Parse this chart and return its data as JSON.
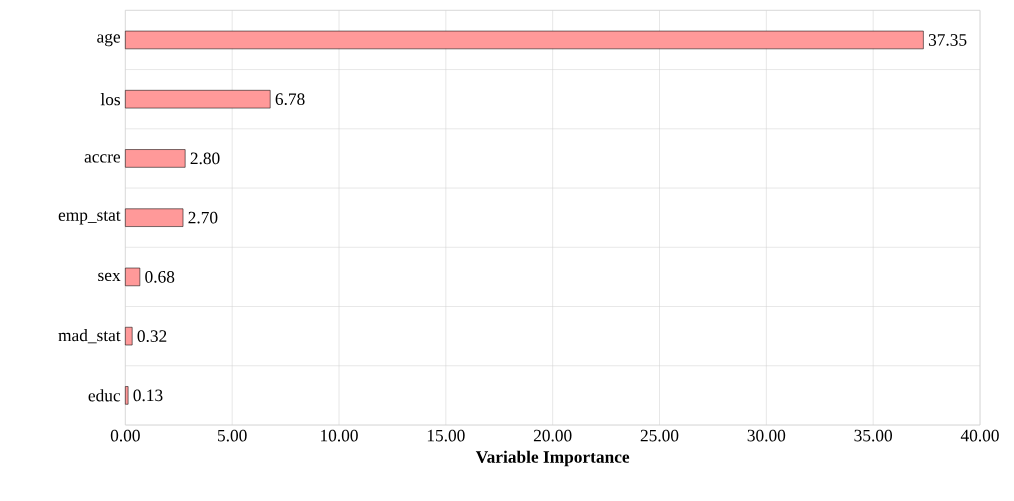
{
  "chart_data": {
    "type": "bar",
    "orientation": "horizontal",
    "xlabel": "Variable Importance",
    "categories": [
      "age",
      "los",
      "accre",
      "emp_stat",
      "sex",
      "mad_stat",
      "educ"
    ],
    "values": [
      37.35,
      6.78,
      2.8,
      2.7,
      0.68,
      0.32,
      0.13
    ],
    "value_labels": [
      "37.35",
      "6.78",
      "2.80",
      "2.70",
      "0.68",
      "0.32",
      "0.13"
    ],
    "color": "#ff9999",
    "xlim": [
      0,
      40
    ],
    "xticks": [
      {
        "value": 0,
        "label": "0.00"
      },
      {
        "value": 5,
        "label": "5.00"
      },
      {
        "value": 10,
        "label": "10.00"
      },
      {
        "value": 15,
        "label": "15.00"
      },
      {
        "value": 20,
        "label": "20.00"
      },
      {
        "value": 25,
        "label": "25.00"
      },
      {
        "value": 30,
        "label": "30.00"
      },
      {
        "value": 35,
        "label": "35.00"
      },
      {
        "value": 40,
        "label": "40.00"
      }
    ],
    "grid": true
  }
}
